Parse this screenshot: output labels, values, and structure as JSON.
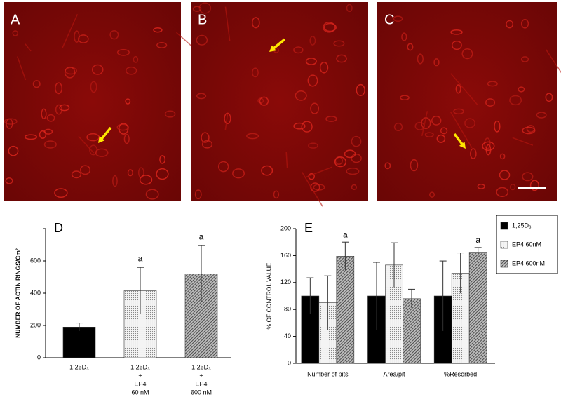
{
  "panels": {
    "labels": [
      "A",
      "B",
      "C"
    ]
  },
  "chart_data": [
    {
      "type": "bar",
      "panel": "D",
      "ylabel": "NUMBER OF ACTIN RINGS/Cm²",
      "categories": [
        [
          "1,25D₃"
        ],
        [
          "1,25D₃",
          "+",
          "EP4",
          "60 nM"
        ],
        [
          "1,25D₃",
          "+",
          "EP4",
          "600 nM"
        ]
      ],
      "values": [
        190,
        415,
        520
      ],
      "errors": [
        25,
        145,
        175
      ],
      "colors": [
        "#000000",
        "#e8e8e8",
        "#7a7a7a"
      ],
      "bar_labels": [
        null,
        "a",
        "a"
      ],
      "ylim": [
        0,
        800
      ],
      "yticks": [
        0,
        200,
        400,
        600
      ]
    },
    {
      "type": "grouped_bar",
      "panel": "E",
      "ylabel": "% OF CONTROL VALUE",
      "categories": [
        "Number of pits",
        "Area/pit",
        "%Resorbed"
      ],
      "series": [
        {
          "name": "1,25D₃",
          "color": "#000000",
          "values": [
            100,
            100,
            100
          ],
          "errors": [
            27,
            50,
            52
          ],
          "bar_labels": [
            null,
            null,
            null
          ]
        },
        {
          "name": "EP4 60nM",
          "color": "#e8e8e8",
          "values": [
            90,
            146,
            134
          ],
          "errors": [
            40,
            33,
            30
          ],
          "bar_labels": [
            null,
            null,
            null
          ]
        },
        {
          "name": "EP4 600nM",
          "color": "#7a7a7a",
          "values": [
            159,
            96,
            165
          ],
          "errors": [
            21,
            14,
            7
          ],
          "bar_labels": [
            "a",
            null,
            "a"
          ]
        }
      ],
      "ylim": [
        0,
        200
      ],
      "yticks": [
        0,
        40,
        80,
        120,
        160,
        200
      ],
      "legend": "right"
    }
  ]
}
